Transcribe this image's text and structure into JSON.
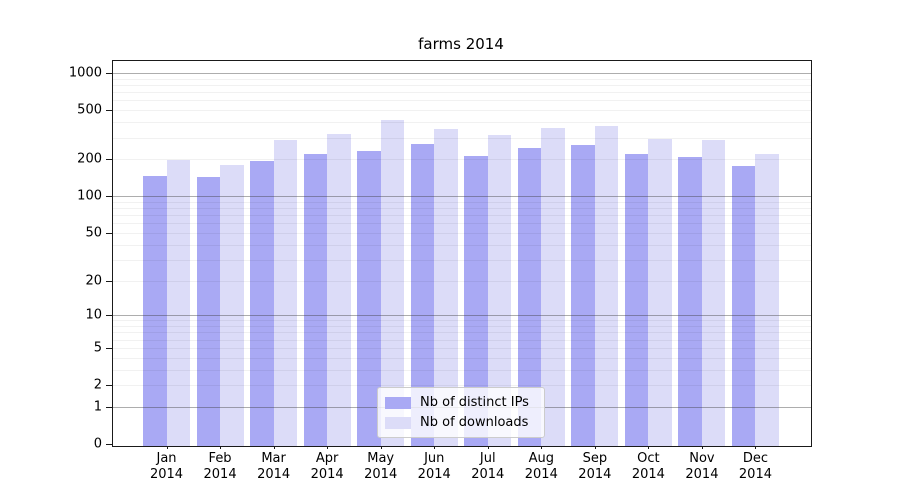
{
  "figure": {
    "title": "farms 2014",
    "background_color": "#ffffff"
  },
  "chart_data": {
    "type": "bar",
    "title": "farms 2014",
    "categories": [
      "Jan 2014",
      "Feb 2014",
      "Mar 2014",
      "Apr 2014",
      "May 2014",
      "Jun 2014",
      "Jul 2014",
      "Aug 2014",
      "Sep 2014",
      "Oct 2014",
      "Nov 2014",
      "Dec 2014"
    ],
    "x_tick_months": [
      "Jan",
      "Feb",
      "Mar",
      "Apr",
      "May",
      "Jun",
      "Jul",
      "Aug",
      "Sep",
      "Oct",
      "Nov",
      "Dec"
    ],
    "x_tick_year": "2014",
    "series": [
      {
        "name": "Nb of distinct IPs",
        "color": "#a9a9f4",
        "values": [
          152,
          148,
          202,
          230,
          240,
          278,
          220,
          255,
          270,
          228,
          218,
          182
        ]
      },
      {
        "name": "Nb of downloads",
        "color": "#dcdcf8",
        "values": [
          203,
          188,
          295,
          330,
          432,
          365,
          326,
          371,
          385,
          303,
          298,
          228
        ]
      }
    ],
    "xlabel": "",
    "ylabel": "",
    "y_axis": {
      "scale": "log(1+x)",
      "tick_labels": [
        0,
        1,
        2,
        5,
        10,
        20,
        50,
        100,
        200,
        500,
        1000
      ],
      "major_gridline_values": [
        1,
        10,
        100,
        1000
      ],
      "minor_gridline_values": [
        2,
        3,
        4,
        5,
        6,
        7,
        8,
        9,
        20,
        30,
        40,
        50,
        60,
        70,
        80,
        90,
        200,
        300,
        400,
        500,
        600,
        700,
        800,
        900
      ],
      "ylim": [
        0,
        1250
      ],
      "grid": "on"
    },
    "legend": {
      "position": "lower center"
    }
  }
}
